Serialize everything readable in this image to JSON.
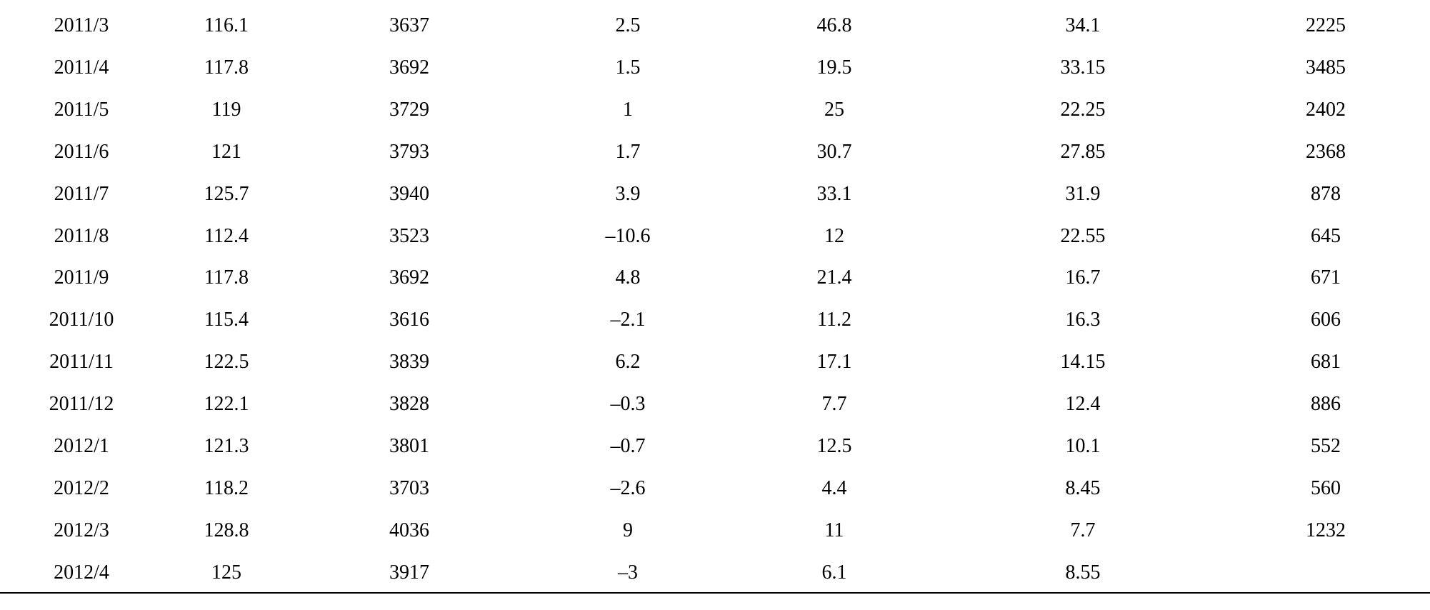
{
  "table": {
    "rows": [
      [
        "2011/3",
        "116.1",
        "3637",
        "2.5",
        "46.8",
        "34.1",
        "2225"
      ],
      [
        "2011/4",
        "117.8",
        "3692",
        "1.5",
        "19.5",
        "33.15",
        "3485"
      ],
      [
        "2011/5",
        "119",
        "3729",
        "1",
        "25",
        "22.25",
        "2402"
      ],
      [
        "2011/6",
        "121",
        "3793",
        "1.7",
        "30.7",
        "27.85",
        "2368"
      ],
      [
        "2011/7",
        "125.7",
        "3940",
        "3.9",
        "33.1",
        "31.9",
        "878"
      ],
      [
        "2011/8",
        "112.4",
        "3523",
        "–10.6",
        "12",
        "22.55",
        "645"
      ],
      [
        "2011/9",
        "117.8",
        "3692",
        "4.8",
        "21.4",
        "16.7",
        "671"
      ],
      [
        "2011/10",
        "115.4",
        "3616",
        "–2.1",
        "11.2",
        "16.3",
        "606"
      ],
      [
        "2011/11",
        "122.5",
        "3839",
        "6.2",
        "17.1",
        "14.15",
        "681"
      ],
      [
        "2011/12",
        "122.1",
        "3828",
        "–0.3",
        "7.7",
        "12.4",
        "886"
      ],
      [
        "2012/1",
        "121.3",
        "3801",
        "–0.7",
        "12.5",
        "10.1",
        "552"
      ],
      [
        "2012/2",
        "118.2",
        "3703",
        "–2.6",
        "4.4",
        "8.45",
        "560"
      ],
      [
        "2012/3",
        "128.8",
        "4036",
        "9",
        "11",
        "7.7",
        "1232"
      ],
      [
        "2012/4",
        "125",
        "3917",
        "–3",
        "6.1",
        "8.55"
      ]
    ]
  }
}
